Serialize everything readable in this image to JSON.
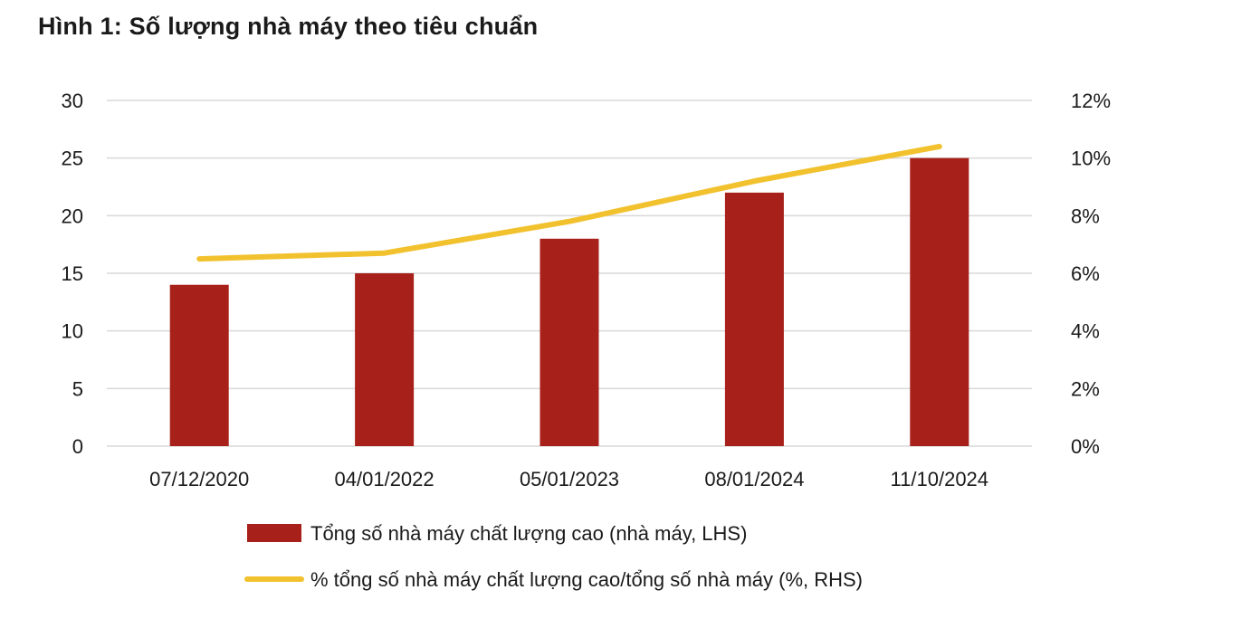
{
  "title": "Hình 1: Số lượng nhà máy theo tiêu chuẩn",
  "colors": {
    "bar": "#a8201a",
    "line": "#f2c12e",
    "grid": "#d9d9d9"
  },
  "chart_data": {
    "type": "bar",
    "categories": [
      "07/12/2020",
      "04/01/2022",
      "05/01/2023",
      "08/01/2024",
      "11/10/2024"
    ],
    "series": [
      {
        "name": "Tổng số nhà máy chất lượng cao (nhà máy, LHS)",
        "type": "bar",
        "axis": "left",
        "values": [
          14,
          15,
          18,
          22,
          25
        ]
      },
      {
        "name": "% tổng số nhà máy chất lượng cao/tổng số nhà máy (%, RHS)",
        "type": "line",
        "axis": "right",
        "values": [
          6.5,
          6.7,
          7.8,
          9.2,
          10.4
        ]
      }
    ],
    "y_left": {
      "ylim": [
        0,
        30
      ],
      "ticks": [
        "0",
        "5",
        "10",
        "15",
        "20",
        "25",
        "30"
      ]
    },
    "y_right": {
      "ylim": [
        0,
        12
      ],
      "ticks": [
        "0%",
        "2%",
        "4%",
        "6%",
        "8%",
        "10%",
        "12%"
      ]
    },
    "grid": true,
    "legend_position": "bottom"
  }
}
